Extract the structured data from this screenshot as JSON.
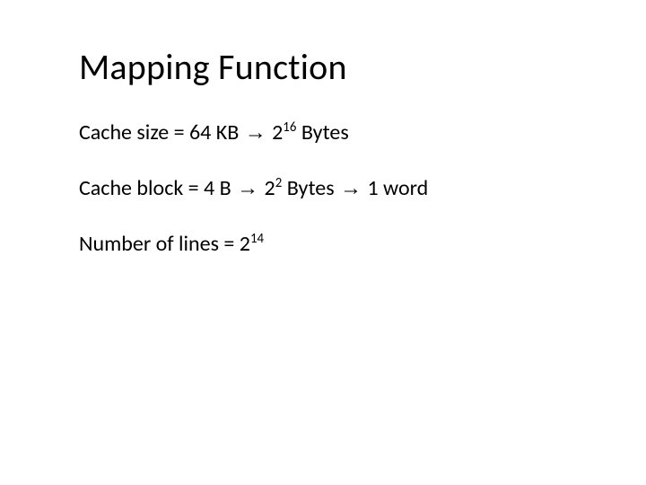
{
  "title": "Mapping Function",
  "lines": {
    "cache_size": {
      "prefix": "Cache size = 64 KB ",
      "arrow1": "→",
      "mid": " 2",
      "exp": "16",
      "suffix": " Bytes"
    },
    "cache_block": {
      "prefix": "Cache block = 4 B ",
      "arrow1": "→",
      "mid": " 2",
      "exp": "2",
      "between": " Bytes ",
      "arrow2": "→",
      "suffix": " 1 word"
    },
    "num_lines": {
      "prefix": "Number of lines = 2",
      "exp": "14"
    }
  },
  "style": {
    "background_color": "#ffffff",
    "text_color": "#000000",
    "title_fontsize": 40,
    "body_fontsize": 24,
    "font_family": "Calibri"
  }
}
